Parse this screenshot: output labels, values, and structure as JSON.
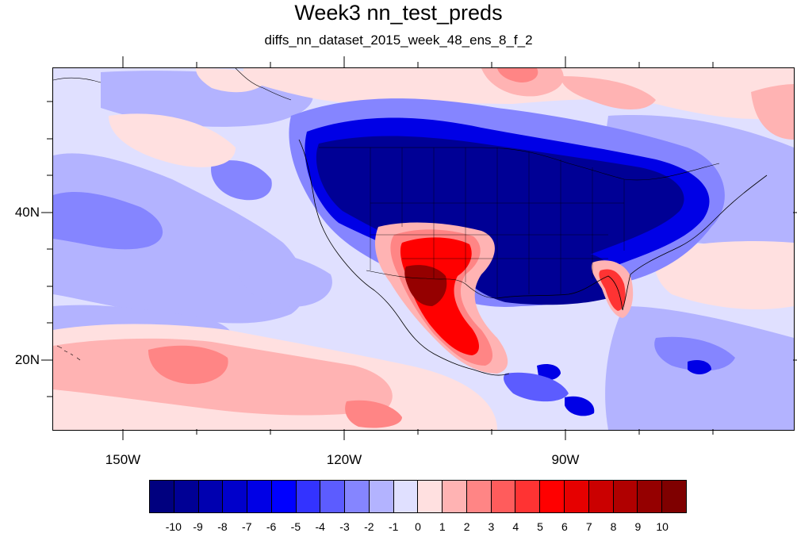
{
  "title": "Week3 nn_test_preds",
  "subtitle": "diffs_nn_dataset_2015_week_48_ens_8_f_2",
  "axes": {
    "lat_labels": [
      "40N",
      "20N"
    ],
    "lon_labels": [
      "150W",
      "120W",
      "90W"
    ]
  },
  "colorbar": {
    "labels": [
      "-10",
      "-9",
      "-8",
      "-7",
      "-6",
      "-5",
      "-4",
      "-3",
      "-2",
      "-1",
      "0",
      "1",
      "2",
      "3",
      "4",
      "5",
      "6",
      "7",
      "8",
      "9",
      "10"
    ],
    "colors": [
      "#00007f",
      "#000095",
      "#0000b0",
      "#0000cb",
      "#0000e6",
      "#0000ff",
      "#3333ff",
      "#5c5cff",
      "#8585ff",
      "#b3b3ff",
      "#e0e0ff",
      "#ffe0e0",
      "#ffb3b3",
      "#ff8585",
      "#ff5c5c",
      "#ff3333",
      "#ff0000",
      "#e60000",
      "#cb0000",
      "#b00000",
      "#950000",
      "#7f0000"
    ]
  },
  "map_colors": {
    "base": "#e0e0ff",
    "ocean_pale_blue": "#b3b3ff",
    "mid_blue": "#8585ff",
    "strong_blue": "#0000cb",
    "deep_blue": "#000095",
    "pale_red": "#ffe0e0",
    "light_red": "#ffb3b3",
    "mid_red": "#ff8585",
    "strong_red": "#ff0000",
    "deep_red": "#950000",
    "coast": "#000000"
  }
}
